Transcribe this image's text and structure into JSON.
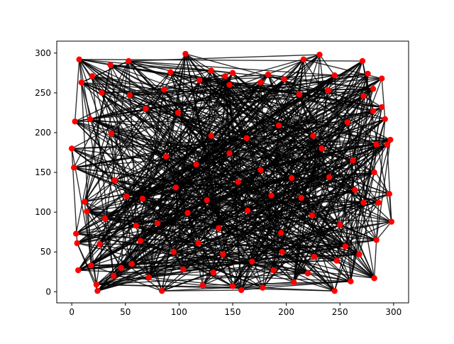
{
  "chart_data": {
    "type": "scatter",
    "title": "",
    "xlabel": "",
    "ylabel": "",
    "xlim": [
      -14,
      314
    ],
    "ylim": [
      -14,
      315
    ],
    "xticks": [
      0,
      50,
      100,
      150,
      200,
      250,
      300
    ],
    "yticks": [
      0,
      50,
      100,
      150,
      200,
      250,
      300
    ],
    "xtick_labels": [
      "0",
      "50",
      "100",
      "150",
      "200",
      "250",
      "300"
    ],
    "ytick_labels": [
      "0",
      "50",
      "100",
      "150",
      "200",
      "250",
      "300"
    ],
    "grid": false,
    "legend": "none",
    "point_color": "#ff0000",
    "edge_color": "#000000",
    "series": [
      {
        "marker": "o",
        "x": [
          7,
          24,
          53,
          106,
          130,
          143,
          183,
          216,
          231,
          271,
          289,
          276,
          281,
          297,
          281,
          245,
          198,
          150,
          92,
          36,
          19,
          0,
          3,
          2,
          4,
          6,
          23,
          39,
          56,
          84,
          122,
          150,
          178,
          207,
          245,
          260,
          282,
          298,
          296,
          284,
          268,
          247,
          220,
          188,
          158,
          132,
          104,
          72,
          46,
          18,
          12,
          26,
          64,
          95,
          118,
          141,
          168,
          196,
          226,
          255,
          286,
          292,
          272,
          239,
          212,
          176,
          147,
          119,
          86,
          54,
          28,
          9,
          17,
          37,
          69,
          99,
          130,
          163,
          193,
          225,
          257,
          284,
          294,
          282,
          264,
          240,
          214,
          186,
          155,
          126,
          97,
          66,
          40,
          14,
          5,
          31,
          60,
          88,
          116,
          147,
          176,
          205,
          233,
          262,
          289,
          272,
          250,
          224,
          195,
          164,
          137,
          108,
          80,
          51
        ],
        "y": [
          292,
          1,
          290,
          299,
          278,
          271,
          273,
          292,
          298,
          290,
          268,
          274,
          255,
          191,
          227,
          272,
          267,
          275,
          276,
          285,
          271,
          180,
          214,
          156,
          73,
          27,
          9,
          20,
          35,
          1,
          8,
          7,
          5,
          12,
          1,
          13,
          17,
          88,
          123,
          65,
          47,
          39,
          23,
          27,
          2,
          24,
          28,
          18,
          30,
          33,
          113,
          60,
          64,
          50,
          61,
          47,
          38,
          50,
          44,
          57,
          112,
          217,
          246,
          253,
          248,
          263,
          260,
          266,
          254,
          247,
          250,
          263,
          217,
          199,
          230,
          225,
          196,
          193,
          209,
          196,
          213,
          185,
          185,
          150,
          128,
          144,
          118,
          121,
          138,
          115,
          131,
          117,
          140,
          101,
          61,
          92,
          83,
          170,
          160,
          174,
          153,
          143,
          180,
          165,
          232,
          112,
          84,
          96,
          74,
          102,
          80,
          99,
          86,
          120
        ]
      }
    ]
  }
}
